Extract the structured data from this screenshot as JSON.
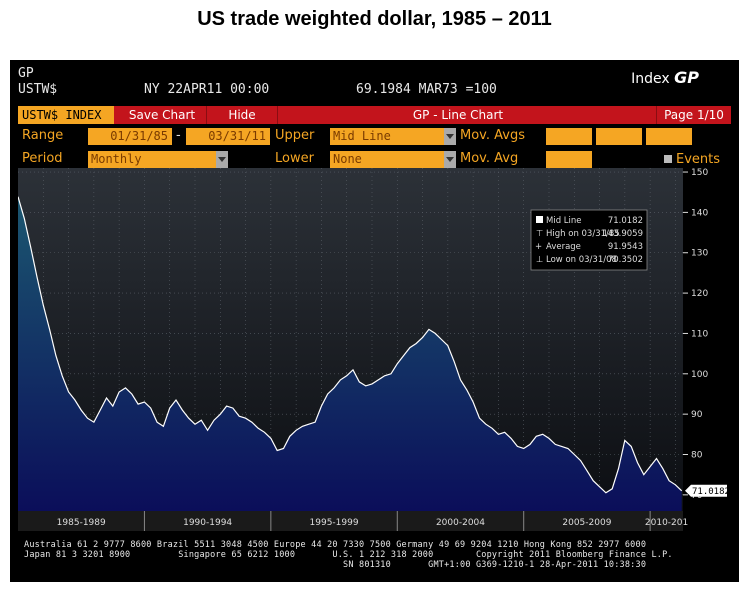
{
  "page_title": "US trade weighted dollar, 1985 – 2011",
  "terminal": {
    "code": "GP",
    "ticker": "USTW$",
    "date_line": "NY 22APR11 00:00",
    "value_line": "69.1984 MAR73 =100",
    "brand_word": "Index",
    "brand_code": "GP"
  },
  "toolbar": {
    "security": "USTW$ INDEX",
    "save": "Save Chart",
    "hide": "Hide",
    "title": "GP - Line Chart",
    "page": "Page 1/10"
  },
  "controls": {
    "range_label": "Range",
    "range_start": "01/31/85",
    "range_sep": "-",
    "range_end": "03/31/11",
    "upper_label": "Upper",
    "upper_value": "Mid Line",
    "movavgs_label": "Mov. Avgs",
    "period_label": "Period",
    "period_value": "Monthly",
    "lower_label": "Lower",
    "lower_value": "None",
    "movavg_label": "Mov. Avg",
    "events_label": "Events"
  },
  "chart_data": {
    "type": "area",
    "title": "",
    "xlabel": "",
    "ylabel": "",
    "ylim": [
      66,
      151
    ],
    "yticks": [
      70,
      80,
      90,
      100,
      110,
      120,
      130,
      140,
      150
    ],
    "xlim": [
      1985.0,
      2011.3
    ],
    "xtick_labels": [
      "1985-1989",
      "1990-1994",
      "1995-1999",
      "2000-2004",
      "2005-2009",
      "2010-201"
    ],
    "last_value_label": "71.0182",
    "legend": {
      "placement": "top-right",
      "entries": [
        {
          "label": "Mid Line",
          "value": "71.0182"
        },
        {
          "label": "High on 03/31/85",
          "value": "143.9059"
        },
        {
          "label": "Average",
          "value": "91.9543"
        },
        {
          "label": "Low on 03/31/08",
          "value": "70.3502"
        }
      ]
    },
    "series": [
      {
        "x": [
          1985.0,
          1985.25,
          1985.5,
          1985.75,
          1986.0,
          1986.25,
          1986.5,
          1986.75,
          1987.0,
          1987.25,
          1987.5,
          1987.75,
          1988.0,
          1988.25,
          1988.5,
          1988.75,
          1989.0,
          1989.25,
          1989.5,
          1989.75,
          1990.0,
          1990.25,
          1990.5,
          1990.75,
          1991.0,
          1991.25,
          1991.5,
          1991.75,
          1992.0,
          1992.25,
          1992.5,
          1992.75,
          1993.0,
          1993.25,
          1993.5,
          1993.75,
          1994.0,
          1994.25,
          1994.5,
          1994.75,
          1995.0,
          1995.25,
          1995.5,
          1995.75,
          1996.0,
          1996.25,
          1996.5,
          1996.75,
          1997.0,
          1997.25,
          1997.5,
          1997.75,
          1998.0,
          1998.25,
          1998.5,
          1998.75,
          1999.0,
          1999.25,
          1999.5,
          1999.75,
          2000.0,
          2000.25,
          2000.5,
          2000.75,
          2001.0,
          2001.25,
          2001.5,
          2001.75,
          2002.0,
          2002.25,
          2002.5,
          2002.75,
          2003.0,
          2003.25,
          2003.5,
          2003.75,
          2004.0,
          2004.25,
          2004.5,
          2004.75,
          2005.0,
          2005.25,
          2005.5,
          2005.75,
          2006.0,
          2006.25,
          2006.5,
          2006.75,
          2007.0,
          2007.25,
          2007.5,
          2007.75,
          2008.0,
          2008.25,
          2008.5,
          2008.75,
          2009.0,
          2009.25,
          2009.5,
          2009.75,
          2010.0,
          2010.25,
          2010.5,
          2010.75,
          2011.0,
          2011.25
        ],
        "y": [
          143.9,
          138.5,
          131.5,
          124.0,
          117.0,
          111.0,
          104.5,
          99.5,
          95.5,
          93.5,
          91.0,
          89.0,
          88.0,
          91.0,
          94.0,
          92.0,
          95.5,
          96.5,
          95.0,
          92.5,
          93.0,
          91.5,
          88.0,
          87.0,
          91.5,
          93.5,
          91.0,
          89.0,
          87.5,
          88.5,
          86.0,
          88.5,
          90.0,
          92.0,
          91.5,
          89.5,
          89.0,
          88.0,
          86.5,
          85.5,
          84.0,
          81.0,
          81.5,
          84.5,
          86.0,
          87.0,
          87.5,
          88.0,
          92.0,
          95.0,
          96.5,
          98.5,
          99.5,
          101.0,
          98.0,
          97.0,
          97.5,
          98.5,
          99.5,
          100.0,
          102.5,
          104.5,
          106.5,
          107.5,
          109.0,
          111.0,
          110.0,
          108.5,
          107.0,
          103.0,
          98.5,
          96.0,
          93.0,
          89.0,
          87.5,
          86.5,
          85.0,
          85.5,
          84.0,
          82.0,
          81.5,
          82.5,
          84.5,
          85.0,
          84.0,
          82.5,
          82.0,
          81.5,
          80.0,
          78.5,
          76.0,
          73.5,
          72.0,
          70.5,
          71.5,
          76.5,
          83.5,
          82.0,
          78.0,
          75.0,
          77.0,
          79.0,
          76.5,
          73.5,
          72.5,
          71.0
        ]
      }
    ]
  },
  "footer": {
    "line1": "Australia 61 2 9777 8600 Brazil 5511 3048 4500 Europe 44 20 7330 7500 Germany 49 69 9204 1210 Hong Kong 852 2977 6000",
    "line2": "Japan 81 3 3201 8900         Singapore 65 6212 1000       U.S. 1 212 318 2000        Copyright 2011 Bloomberg Finance L.P.",
    "line3": "                                                            SN 801310       GMT+1:00 G369-1210-1 28-Apr-2011 10:38:30"
  },
  "colors": {
    "toolbar_red": "#c3141c",
    "field_orange": "#f5a623",
    "area_top": "#1b5770",
    "area_bottom": "#0b0e5a",
    "line": "#ffffff"
  }
}
